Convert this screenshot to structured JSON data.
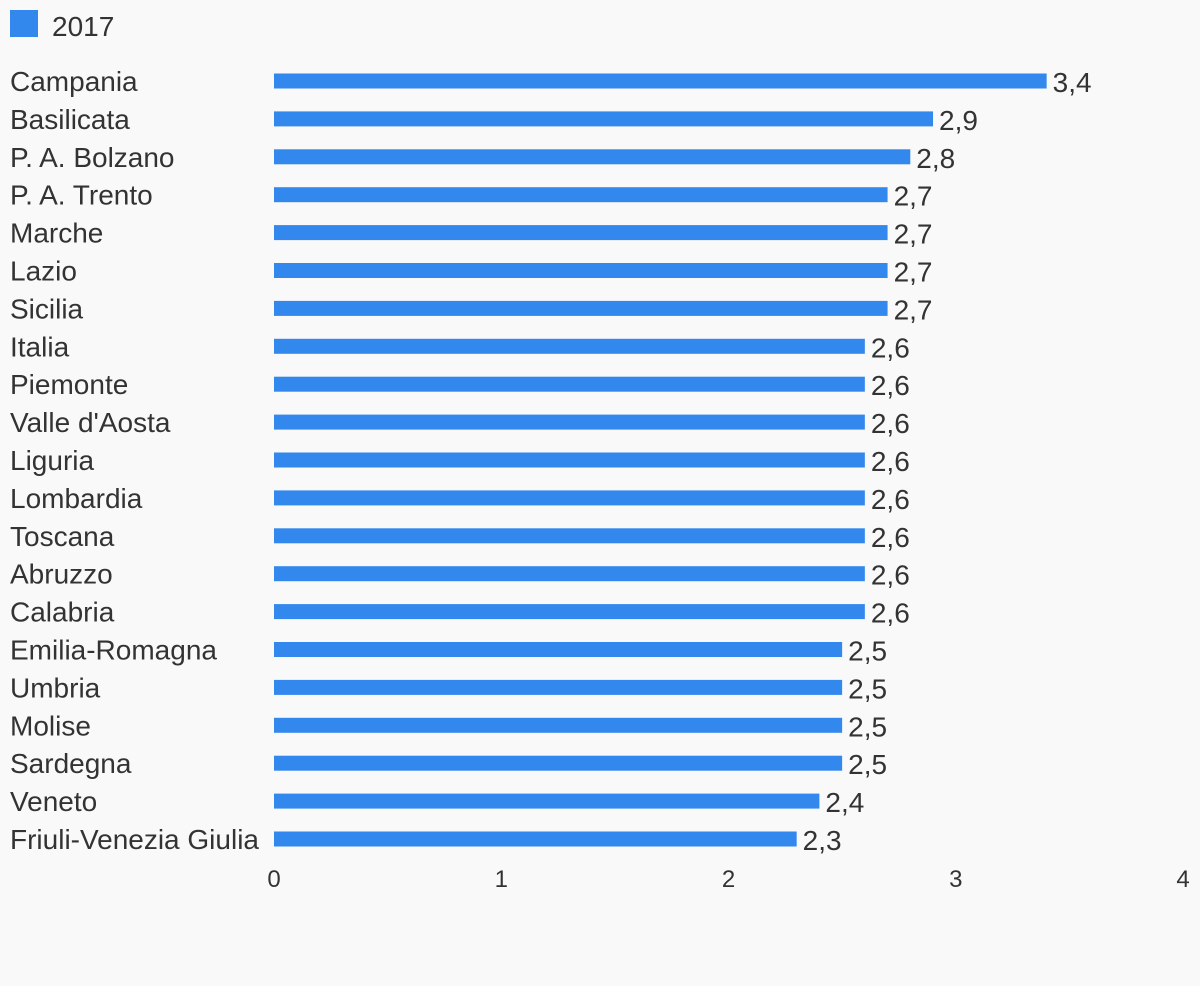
{
  "chart_data": {
    "type": "bar",
    "orientation": "horizontal",
    "legend": {
      "position": "top-left",
      "entries": [
        {
          "label": "2017",
          "color": "#3388ee"
        }
      ]
    },
    "categories": [
      "Campania",
      "Basilicata",
      "P. A. Bolzano",
      "P. A. Trento",
      "Marche",
      "Lazio",
      "Sicilia",
      "Italia",
      "Piemonte",
      "Valle d'Aosta",
      "Liguria",
      "Lombardia",
      "Toscana",
      "Abruzzo",
      "Calabria",
      "Emilia-Romagna",
      "Umbria",
      "Molise",
      "Sardegna",
      "Veneto",
      "Friuli-Venezia Giulia"
    ],
    "series": [
      {
        "name": "2017",
        "color": "#3388ee",
        "values": [
          3.4,
          2.9,
          2.8,
          2.7,
          2.7,
          2.7,
          2.7,
          2.6,
          2.6,
          2.6,
          2.6,
          2.6,
          2.6,
          2.6,
          2.6,
          2.5,
          2.5,
          2.5,
          2.5,
          2.4,
          2.3
        ],
        "value_labels": [
          "3,4",
          "2,9",
          "2,8",
          "2,7",
          "2,7",
          "2,7",
          "2,7",
          "2,6",
          "2,6",
          "2,6",
          "2,6",
          "2,6",
          "2,6",
          "2,6",
          "2,6",
          "2,5",
          "2,5",
          "2,5",
          "2,5",
          "2,4",
          "2,3"
        ]
      }
    ],
    "xlim": [
      0,
      4
    ],
    "x_ticks": [
      0,
      1,
      2,
      3,
      4
    ],
    "x_tick_labels": [
      "0",
      "1",
      "2",
      "3",
      "4"
    ],
    "grid": false,
    "title": "",
    "xlabel": "",
    "ylabel": ""
  }
}
